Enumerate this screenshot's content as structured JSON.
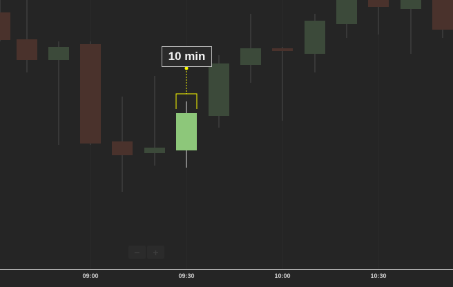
{
  "tooltip": {
    "label": "10 min"
  },
  "zoom": {
    "minus_label": "−",
    "plus_label": "+"
  },
  "chart_data": {
    "type": "candlestick",
    "x_tick_labels": [
      "09:00",
      "09:30",
      "10:00",
      "10:30"
    ],
    "highlighted_candle": {
      "x": "09:30",
      "label": "10 min"
    },
    "colors": {
      "up": "#8dc77a",
      "down": "#c0503a",
      "highlight": "#ffff00"
    }
  }
}
